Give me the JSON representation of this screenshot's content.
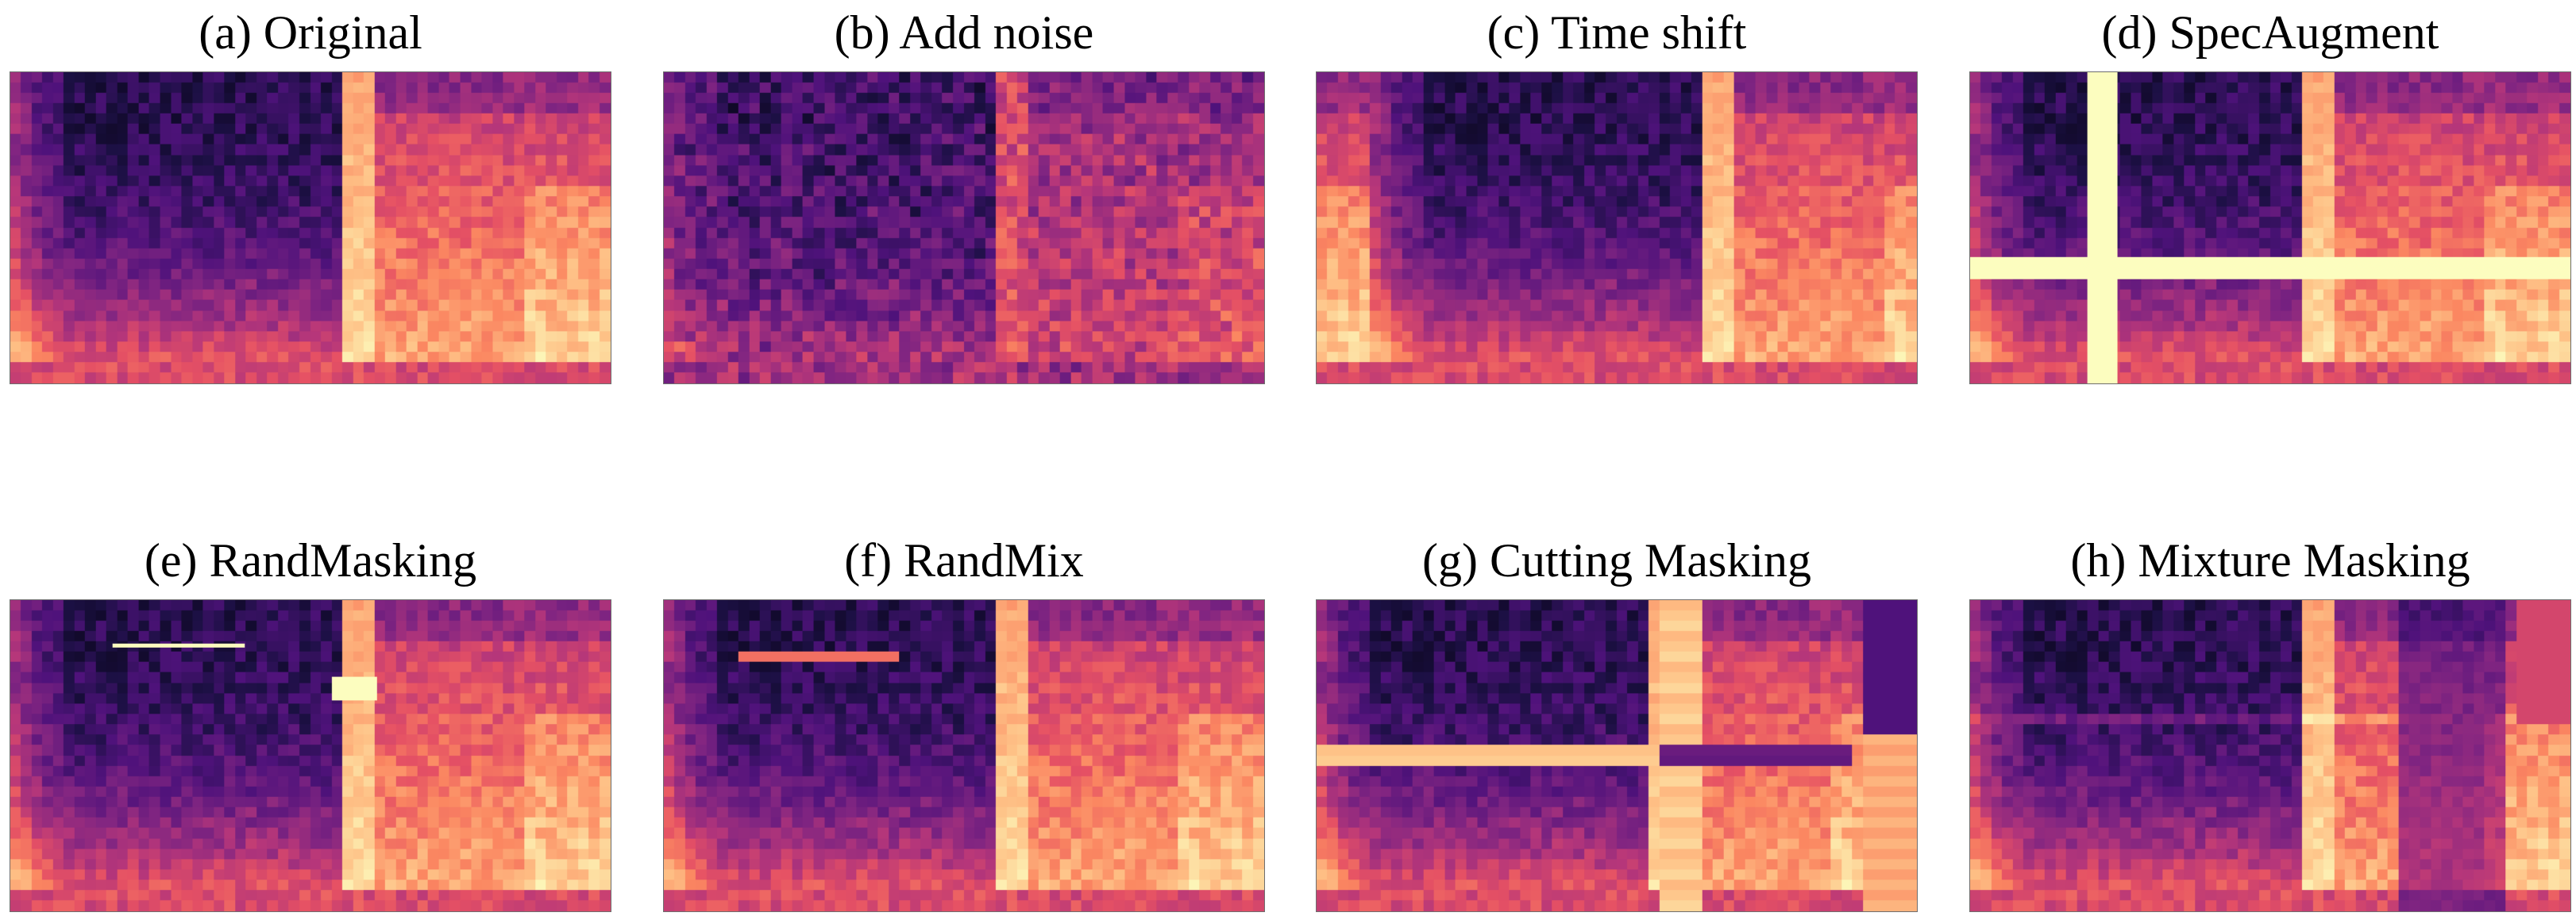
{
  "figure": {
    "panels": [
      {
        "id": "a",
        "caption": "(a) Original",
        "augmentation": "original"
      },
      {
        "id": "b",
        "caption": "(b) Add noise",
        "augmentation": "add-noise"
      },
      {
        "id": "c",
        "caption": "(c) Time shift",
        "augmentation": "time-shift"
      },
      {
        "id": "d",
        "caption": "(d) SpecAugment",
        "augmentation": "specaugment"
      },
      {
        "id": "e",
        "caption": "(e) RandMasking",
        "augmentation": "randmasking"
      },
      {
        "id": "f",
        "caption": "(f) RandMix",
        "augmentation": "randmix"
      },
      {
        "id": "g",
        "caption": "(g) Cutting Masking",
        "augmentation": "cutting-masking"
      },
      {
        "id": "h",
        "caption": "(h) Mixture Masking",
        "augmentation": "mixture-masking"
      }
    ],
    "colormap": "magma",
    "mask_color": "#fcfdbf"
  }
}
